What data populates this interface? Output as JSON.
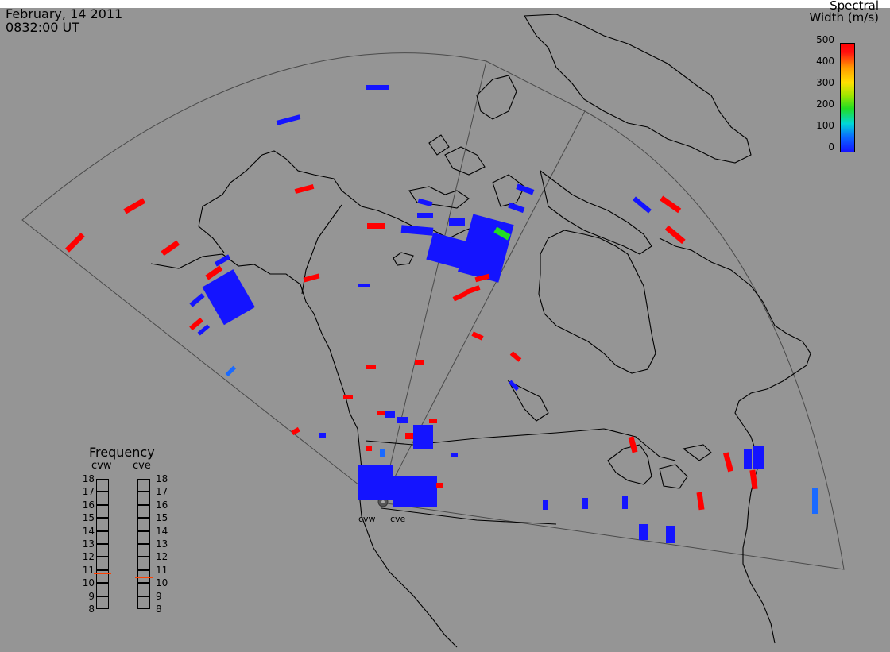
{
  "header": {
    "date": "February, 14 2011",
    "time": "0832:00 UT"
  },
  "colorbar": {
    "title_line1": "Spectral",
    "title_line2": "Width (m/s)",
    "ticks": [
      "500",
      "400",
      "300",
      "200",
      "100",
      "0"
    ],
    "colors": [
      "#ff0000",
      "#ff9a00",
      "#ffe000",
      "#22dd22",
      "#00d8d8",
      "#1414ff"
    ]
  },
  "radars": {
    "west": "cvw",
    "east": "cve"
  },
  "frequency": {
    "title": "Frequency",
    "col_west": "cvw",
    "col_east": "cve",
    "ticks": [
      "18",
      "17",
      "16",
      "15",
      "14",
      "13",
      "12",
      "11",
      "10",
      "9",
      "8"
    ],
    "cvw_value": 10.8,
    "cve_value": 10.5,
    "marker_color": "#ff4000"
  },
  "echo_colors": {
    "low_width": "#1414ff",
    "mid_width": "#1a6aff",
    "green": "#22dd22",
    "high_width": "#ff0000"
  }
}
